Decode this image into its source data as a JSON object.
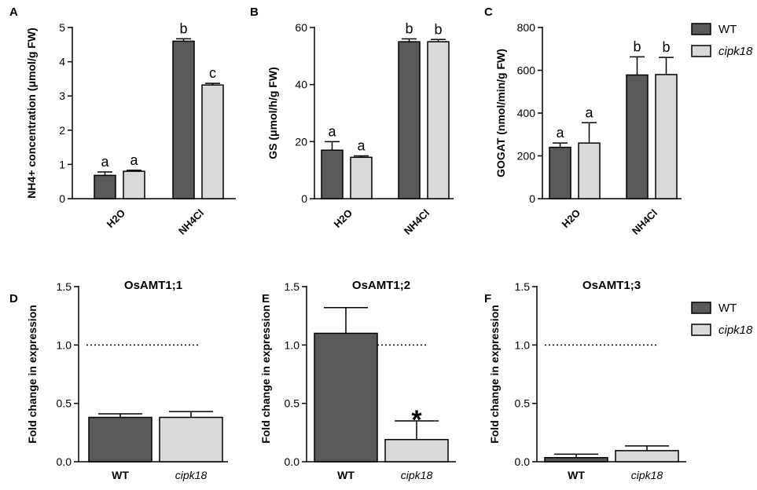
{
  "chart_data": [
    {
      "panel": "A",
      "type": "bar",
      "ylabel": "NH4+ concentration (μmol/g FW)",
      "categories": [
        "H2O",
        "NH4Cl"
      ],
      "series": [
        {
          "name": "WT",
          "color": "#595959",
          "values": [
            0.68,
            4.6
          ],
          "errors": [
            0.1,
            0.07
          ],
          "labels": [
            "a",
            "b"
          ]
        },
        {
          "name": "cipk18",
          "color": "#d9d9d9",
          "values": [
            0.8,
            3.32
          ],
          "errors": [
            0.03,
            0.05
          ],
          "labels": [
            "a",
            "c"
          ]
        }
      ],
      "ylim": [
        0,
        5
      ],
      "yticks": [
        0,
        1,
        2,
        3,
        4,
        5
      ],
      "legend": false
    },
    {
      "panel": "B",
      "type": "bar",
      "ylabel": "GS (μmol/h/g FW)",
      "categories": [
        "H2O",
        "NH4Cl"
      ],
      "series": [
        {
          "name": "WT",
          "color": "#595959",
          "values": [
            17,
            55
          ],
          "errors": [
            3,
            1
          ],
          "labels": [
            "a",
            "b"
          ]
        },
        {
          "name": "cipk18",
          "color": "#d9d9d9",
          "values": [
            14.5,
            55
          ],
          "errors": [
            0.5,
            0.8
          ],
          "labels": [
            "a",
            "b"
          ]
        }
      ],
      "ylim": [
        0,
        60
      ],
      "yticks": [
        0,
        20,
        40,
        60
      ],
      "legend": false
    },
    {
      "panel": "C",
      "type": "bar",
      "ylabel": "GOGAT (nmol/min/g FW)",
      "categories": [
        "H2O",
        "NH4Cl"
      ],
      "series": [
        {
          "name": "WT",
          "color": "#595959",
          "values": [
            240,
            578
          ],
          "errors": [
            20,
            85
          ],
          "labels": [
            "a",
            "b"
          ]
        },
        {
          "name": "cipk18",
          "color": "#d9d9d9",
          "values": [
            260,
            580
          ],
          "errors": [
            95,
            80
          ],
          "labels": [
            "a",
            "b"
          ]
        }
      ],
      "ylim": [
        0,
        800
      ],
      "yticks": [
        0,
        200,
        400,
        600,
        800
      ],
      "legend": true
    },
    {
      "panel": "D",
      "type": "bar",
      "title": "OsAMT1;1",
      "ylabel": "Fold change in expression",
      "categories": [
        "WT",
        "cipk18"
      ],
      "values": [
        0.38,
        0.38
      ],
      "errors": [
        0.03,
        0.05
      ],
      "colors": [
        "#595959",
        "#d9d9d9"
      ],
      "hline": 1,
      "ylim": [
        0,
        1.5
      ],
      "yticks": [
        {
          "value": 0,
          "label": "0.0"
        },
        0.5,
        {
          "value": 1,
          "label": "1.0"
        },
        1.5
      ],
      "legend": false
    },
    {
      "panel": "E",
      "type": "bar",
      "title": "OsAMT1;2",
      "ylabel": "Fold change in expression",
      "categories": [
        "WT",
        "cipk18"
      ],
      "values": [
        1.1,
        0.19
      ],
      "errors": [
        0.22,
        0.16
      ],
      "colors": [
        "#595959",
        "#d9d9d9"
      ],
      "hline": 1,
      "annotations": [
        {
          "text": "*",
          "x": "cipk18"
        }
      ],
      "ylim": [
        0,
        1.5
      ],
      "yticks": [
        {
          "value": 0,
          "label": "0.0"
        },
        0.5,
        {
          "value": 1,
          "label": "1.0"
        },
        1.5
      ],
      "legend": false
    },
    {
      "panel": "F",
      "type": "bar",
      "title": "OsAMT1;3",
      "ylabel": "Fold change in expression",
      "categories": [
        "WT",
        "cipk18"
      ],
      "values": [
        0.035,
        0.095
      ],
      "errors": [
        0.03,
        0.04
      ],
      "colors": [
        "#595959",
        "#d9d9d9"
      ],
      "hline": 1,
      "ylim": [
        0,
        1.5
      ],
      "yticks": [
        {
          "value": 0,
          "label": "0.0"
        },
        0.5,
        {
          "value": 1,
          "label": "1.0"
        },
        1.5
      ],
      "legend": true
    }
  ]
}
